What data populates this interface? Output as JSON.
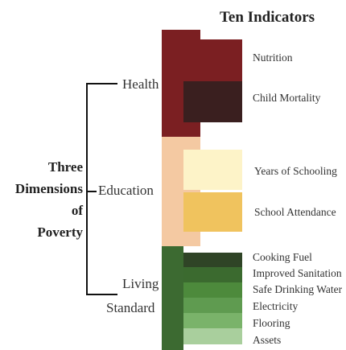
{
  "title": "Ten Indicators",
  "dimensions_label": [
    "Three",
    "Dimensions",
    "of",
    "Poverty"
  ],
  "categories": {
    "health": "Health",
    "education": "Education",
    "living_line1": "Living",
    "living_line2": "Standard"
  },
  "indicators": [
    {
      "label": "Nutrition",
      "color": "#7b1f22"
    },
    {
      "label": "Child Mortality",
      "color": "#3a1f1f"
    },
    {
      "label": "Years of Schooling",
      "color": "#fdf3c8"
    },
    {
      "label": "School Attendance",
      "color": "#f0c35e"
    },
    {
      "label": "Cooking Fuel",
      "color": "#2f4426"
    },
    {
      "label": "Improved Sanitation",
      "color": "#3b6a2f"
    },
    {
      "label": "Safe Drinking Water",
      "color": "#4d8a3c"
    },
    {
      "label": "Electricity",
      "color": "#5f9b50"
    },
    {
      "label": "Flooring",
      "color": "#7ab36a"
    },
    {
      "label": "Assets",
      "color": "#a9cf9d"
    }
  ],
  "colors": {
    "health_bar": "#7b1f22",
    "education_bar": "#f4c9a2",
    "living_bar": "#3c6a31"
  }
}
